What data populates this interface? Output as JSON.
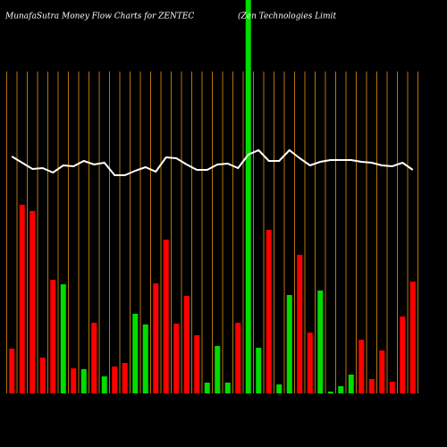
{
  "chart_data": {
    "type": "bar",
    "title": "MunafaSutra  Money Flow  Charts for ZENTEC",
    "subtitle": "(Zen Technologies Limit",
    "ylim": [
      0,
      440
    ],
    "grid": true,
    "grid_color": "#b8740a",
    "series": [
      {
        "type": "bar",
        "colors": [
          "#ff0000",
          "#ff0000",
          "#ff0000",
          "#ff0000",
          "#ff0000",
          "#00dd00",
          "#ff0000",
          "#00dd00",
          "#ff0000",
          "#00dd00",
          "#ff0000",
          "#ff0000",
          "#00dd00",
          "#00dd00",
          "#ff0000",
          "#ff0000",
          "#ff0000",
          "#ff0000",
          "#ff0000",
          "#00dd00",
          "#00dd00",
          "#00dd00",
          "#ff0000",
          "#00dd00",
          "#00dd00",
          "#ff0000",
          "#00dd00",
          "#00dd00",
          "#ff0000",
          "#ff0000",
          "#00dd00",
          "#00dd00",
          "#00dd00",
          "#00dd00",
          "#ff0000",
          "#ff0000",
          "#ff0000",
          "#ff0000",
          "#ff0000",
          "#ff0000"
        ],
        "values": [
          50,
          211,
          204,
          40,
          127,
          122,
          28,
          27,
          79,
          19,
          30,
          34,
          89,
          77,
          123,
          172,
          78,
          109,
          65,
          12,
          53,
          12,
          79,
          440,
          51,
          183,
          10,
          110,
          155,
          68,
          115,
          2,
          8,
          21,
          60,
          16,
          48,
          13,
          86,
          125
        ]
      },
      {
        "type": "line",
        "color": "#ffffff",
        "values": [
          265,
          258,
          251,
          252,
          247,
          255,
          254,
          260,
          256,
          258,
          244,
          244,
          249,
          253,
          248,
          264,
          263,
          256,
          250,
          250,
          256,
          257,
          252,
          267,
          272,
          260,
          260,
          272,
          263,
          255,
          259,
          261,
          261,
          261,
          259,
          258,
          255,
          254,
          258,
          250
        ]
      }
    ]
  }
}
